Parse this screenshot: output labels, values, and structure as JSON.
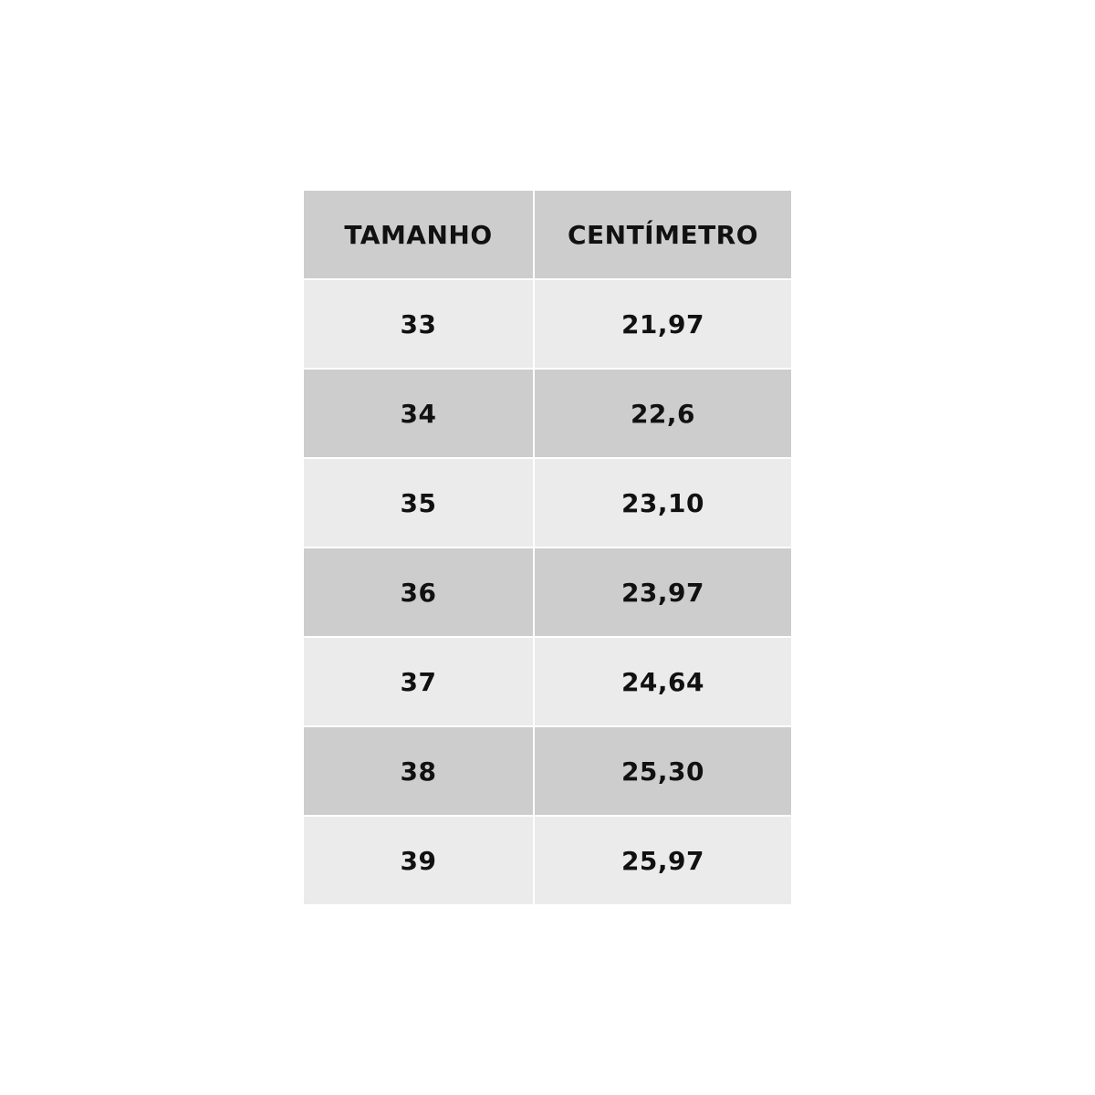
{
  "table": {
    "header": [
      "TAMANHO",
      "CENTÍMETRO"
    ],
    "rows": [
      [
        "33",
        "21,97"
      ],
      [
        "34",
        "22,6"
      ],
      [
        "35",
        "23,10"
      ],
      [
        "36",
        "23,97"
      ],
      [
        "37",
        "24,64"
      ],
      [
        "38",
        "25,30"
      ],
      [
        "39",
        "25,97"
      ]
    ]
  }
}
